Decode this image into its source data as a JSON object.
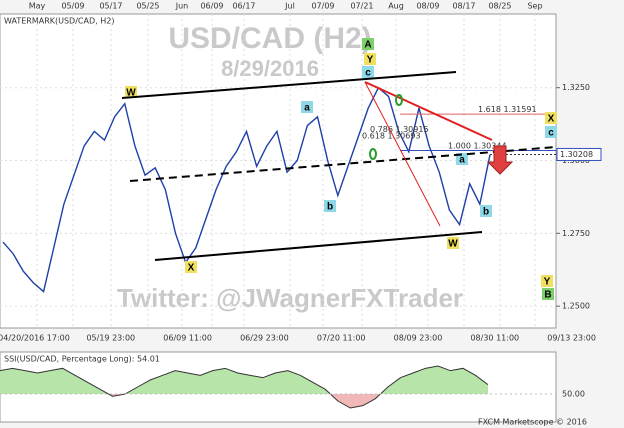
{
  "header": "WATERMARK(USD/CAD, H2)",
  "watermark": {
    "title": "USD/CAD (H2)",
    "date": "8/29/2016",
    "twitter": "Twitter: @JWagnerFXTrader"
  },
  "footer": "FXCM Marketscope © 2016",
  "chart_data": [
    {
      "type": "line",
      "top_labels": [
        "May",
        "05/09",
        "05/17",
        "05/25",
        "Jun",
        "06/09",
        "06/17",
        "Jul",
        "07/09",
        "07/21",
        "Aug",
        "08/09",
        "08/17",
        "08/25",
        "Sep"
      ],
      "x_labels": [
        "04/20/2016 17:00",
        "05/19 23:00",
        "06/09 11:00",
        "06/29 23:00",
        "07/20 11:00",
        "08/09 23:00",
        "08/30 11:00",
        "09/13 23:00"
      ],
      "values": [
        1.272,
        1.268,
        1.262,
        1.258,
        1.255,
        1.27,
        1.285,
        1.295,
        1.305,
        1.31,
        1.307,
        1.315,
        1.3195,
        1.305,
        1.295,
        1.2975,
        1.29,
        1.275,
        1.265,
        1.27,
        1.28,
        1.29,
        1.298,
        1.303,
        1.31,
        1.298,
        1.305,
        1.31,
        1.296,
        1.3,
        1.312,
        1.315,
        1.3,
        1.288,
        1.298,
        1.308,
        1.318,
        1.325,
        1.322,
        1.31,
        1.303,
        1.318,
        1.305,
        1.296,
        1.283,
        1.278,
        1.292,
        1.285,
        1.302
      ],
      "color": "#1f3fa8",
      "ylim": [
        1.2425,
        1.3503
      ],
      "yticks": [
        {
          "value": 1.325,
          "label": "1.3250"
        },
        {
          "value": 1.3,
          "label": "1.3000"
        },
        {
          "value": 1.275,
          "label": "1.2750"
        },
        {
          "value": 1.25,
          "label": "1.2500"
        }
      ],
      "grid": true,
      "last_price": 1.30208,
      "fib_levels": [
        {
          "ratio": 1.618,
          "price": 1.31591
        },
        {
          "ratio": 0.786,
          "price": 1.30915
        },
        {
          "ratio": 0.618,
          "price": 1.30693
        },
        {
          "ratio": {
            "value": 1,
            "label": "1.000"
          },
          "price": 1.30344
        }
      ],
      "wave_labels": [
        "W",
        "X",
        "A",
        "Y",
        "c",
        "a",
        "b",
        "X",
        "c",
        "a",
        "b",
        "W",
        "Y",
        "B"
      ]
    },
    {
      "type": "area",
      "title": "SSI(USD/CAD, Percentage Long): 54.01",
      "values": [
        60,
        61,
        60,
        59,
        60,
        61,
        58,
        55,
        52,
        49,
        50,
        53,
        56,
        58,
        60,
        59,
        58,
        60,
        61,
        59,
        58,
        57,
        59,
        60,
        58,
        55,
        52,
        47,
        44,
        45,
        48,
        53,
        57,
        59,
        61,
        62,
        60,
        61,
        58,
        54.01
      ],
      "color": "#b7e4a8",
      "negative_color": "#f2b8b8",
      "ylim": [
        38,
        68
      ],
      "yticks": [
        {
          "value": 50,
          "label": "50.00"
        }
      ]
    }
  ]
}
